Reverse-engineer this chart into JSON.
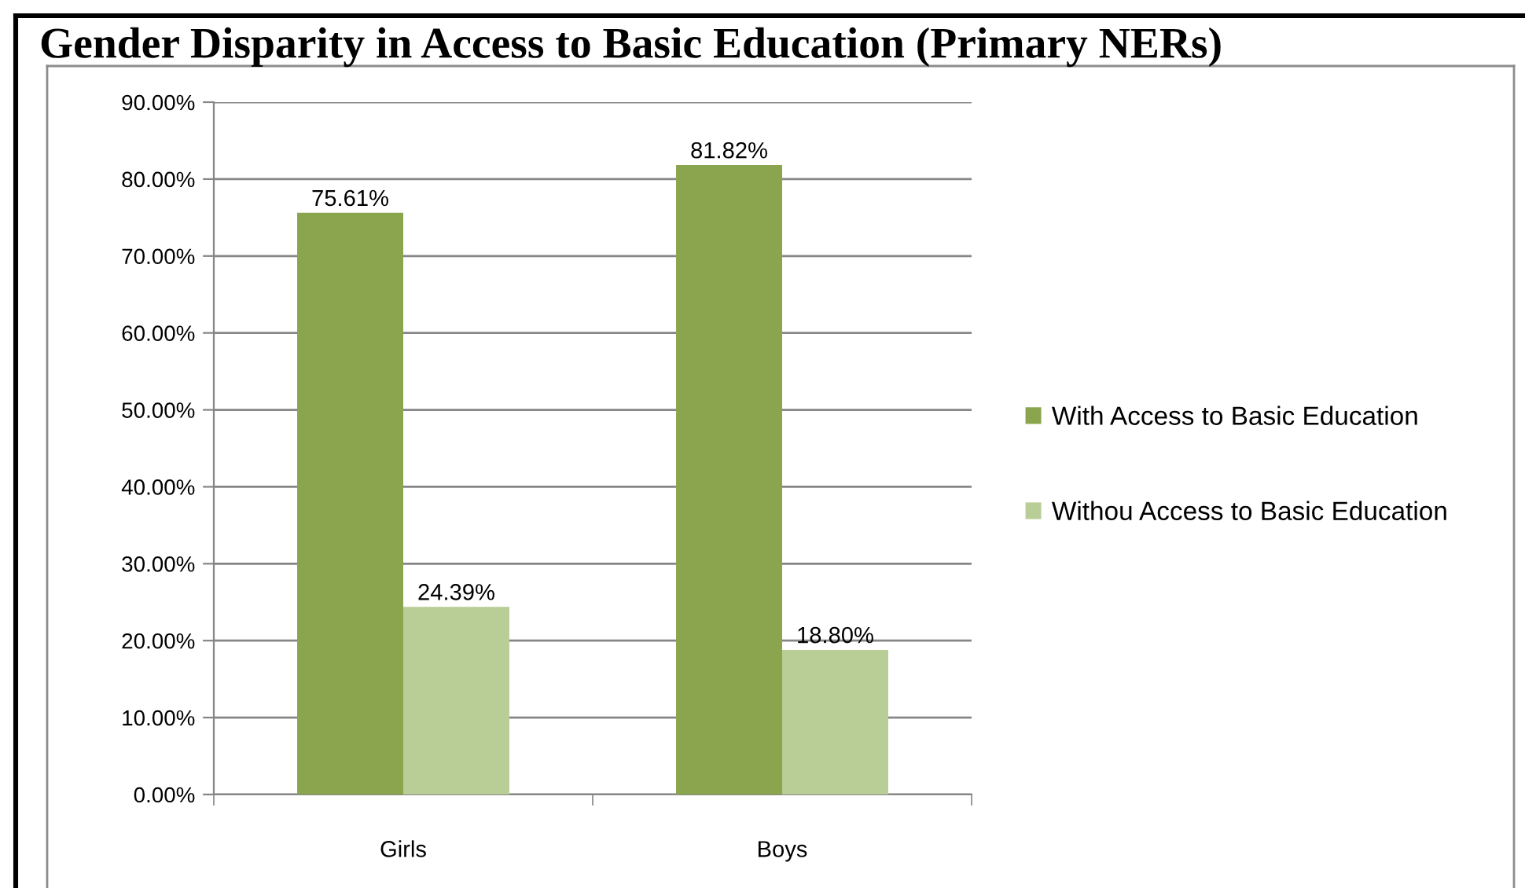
{
  "chart_data": {
    "type": "bar",
    "title": "Gender Disparity in Access to Basic Education (Primary NERs)",
    "categories": [
      "Girls",
      "Boys"
    ],
    "series": [
      {
        "name": "With Access to Basic Education",
        "color": "#8aa54e",
        "values": [
          75.61,
          81.82
        ],
        "value_labels": [
          "75.61%",
          "81.82%"
        ]
      },
      {
        "name": "Withou Access to Basic Education",
        "color": "#b9cd96",
        "values": [
          24.39,
          18.8
        ],
        "value_labels": [
          "24.39%",
          "18.80%"
        ]
      }
    ],
    "ylim": [
      0,
      90
    ],
    "yticks": [
      {
        "value": 0,
        "label": "0.00%"
      },
      {
        "value": 10,
        "label": "10.00%"
      },
      {
        "value": 20,
        "label": "20.00%"
      },
      {
        "value": 30,
        "label": "30.00%"
      },
      {
        "value": 40,
        "label": "40.00%"
      },
      {
        "value": 50,
        "label": "50.00%"
      },
      {
        "value": 60,
        "label": "60.00%"
      },
      {
        "value": 70,
        "label": "70.00%"
      },
      {
        "value": 80,
        "label": "80.00%"
      },
      {
        "value": 90,
        "label": "90.00%"
      }
    ],
    "grid": "y",
    "legend": "right"
  }
}
